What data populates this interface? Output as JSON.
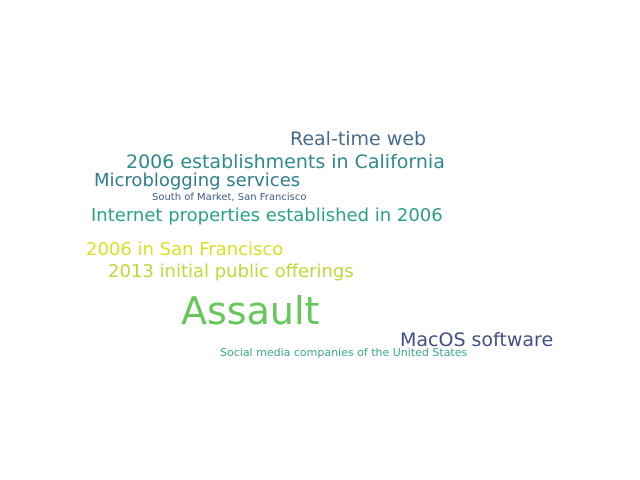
{
  "words": [
    {
      "id": "realtime",
      "text": "Real-time web",
      "color": "#466c8f"
    },
    {
      "id": "2006est",
      "text": "2006 establishments in California",
      "color": "#2f8a8c"
    },
    {
      "id": "microblog",
      "text": "Microblogging services",
      "color": "#2f7e8e"
    },
    {
      "id": "soma",
      "text": "South of Market, San Francisco",
      "color": "#3e5c8a"
    },
    {
      "id": "internet",
      "text": "Internet properties established in 2006",
      "color": "#2aa384"
    },
    {
      "id": "2006sf",
      "text": "2006 in San Francisco",
      "color": "#d7e226"
    },
    {
      "id": "2013ipo",
      "text": "2013 initial public offerings",
      "color": "#c0d83a"
    },
    {
      "id": "assault",
      "text": "Assault",
      "color": "#66c85b"
    },
    {
      "id": "macos",
      "text": "MacOS software",
      "color": "#414e88"
    },
    {
      "id": "socialmed",
      "text": "Social media companies of the United States",
      "color": "#3aa98a"
    }
  ]
}
